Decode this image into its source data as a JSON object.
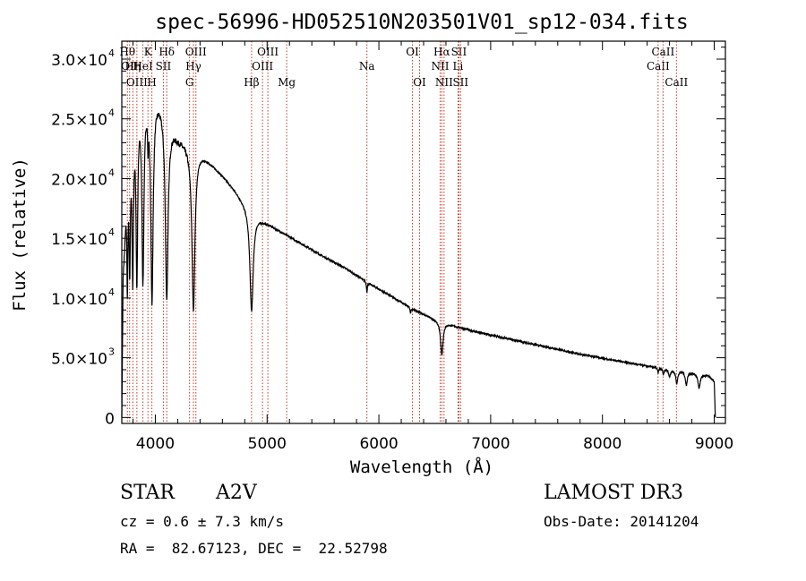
{
  "chart_data": {
    "type": "line",
    "title": "spec-56996-HD052510N203501V01_sp12-034.fits",
    "xlabel": "Wavelength (Å)",
    "ylabel": "Flux (relative)",
    "xlim": [
      3700,
      9100
    ],
    "ylim": [
      -500,
      31500
    ],
    "x_ticks": [
      {
        "value": 4000,
        "label": "4000"
      },
      {
        "value": 5000,
        "label": "5000"
      },
      {
        "value": 6000,
        "label": "6000"
      },
      {
        "value": 7000,
        "label": "7000"
      },
      {
        "value": 8000,
        "label": "8000"
      },
      {
        "value": 9000,
        "label": "9000"
      }
    ],
    "y_ticks": [
      {
        "value": 0,
        "label": "0",
        "exp": ""
      },
      {
        "value": 5000,
        "label": "5.0×10",
        "exp": "3"
      },
      {
        "value": 10000,
        "label": "1.0×10",
        "exp": "4"
      },
      {
        "value": 15000,
        "label": "1.5×10",
        "exp": "4"
      },
      {
        "value": 20000,
        "label": "2.0×10",
        "exp": "4"
      },
      {
        "value": 25000,
        "label": "2.5×10",
        "exp": "4"
      },
      {
        "value": 30000,
        "label": "3.0×10",
        "exp": "4"
      }
    ],
    "lines": [
      {
        "wave": 3750,
        "label": "Hθ",
        "row": 1
      },
      {
        "wave": 3770,
        "label": "OII",
        "row": 2
      },
      {
        "wave": 3799,
        "label": "Hη",
        "row": 2
      },
      {
        "wave": 3835,
        "label": "OIII",
        "row": 3
      },
      {
        "wave": 3889,
        "label": "HeI",
        "row": 2
      },
      {
        "wave": 3934,
        "label": "K",
        "row": 1
      },
      {
        "wave": 3969,
        "label": "H",
        "row": 3
      },
      {
        "wave": 4072,
        "label": "SII",
        "row": 2
      },
      {
        "wave": 4102,
        "label": "Hδ",
        "row": 1
      },
      {
        "wave": 4306,
        "label": "G",
        "row": 3
      },
      {
        "wave": 4341,
        "label": "Hγ",
        "row": 2
      },
      {
        "wave": 4363,
        "label": "OIII",
        "row": 1
      },
      {
        "wave": 4861,
        "label": "Hβ",
        "row": 3
      },
      {
        "wave": 4959,
        "label": "OIII",
        "row": 2
      },
      {
        "wave": 5007,
        "label": "OIII",
        "row": 1
      },
      {
        "wave": 5175,
        "label": "Mg",
        "row": 3
      },
      {
        "wave": 5893,
        "label": "Na",
        "row": 2
      },
      {
        "wave": 6300,
        "label": "OI",
        "row": 1
      },
      {
        "wave": 6364,
        "label": "OI",
        "row": 3
      },
      {
        "wave": 6548,
        "label": "NII",
        "row": 2
      },
      {
        "wave": 6563,
        "label": "Hα",
        "row": 1
      },
      {
        "wave": 6583,
        "label": "NII",
        "row": 3
      },
      {
        "wave": 6708,
        "label": "Li",
        "row": 2
      },
      {
        "wave": 6716,
        "label": "SII",
        "row": 1
      },
      {
        "wave": 6731,
        "label": "SII",
        "row": 3
      },
      {
        "wave": 8498,
        "label": "CaII",
        "row": 2
      },
      {
        "wave": 8542,
        "label": "CaII",
        "row": 1
      },
      {
        "wave": 8662,
        "label": "CaII",
        "row": 3
      }
    ],
    "continuum": [
      [
        3700,
        0
      ],
      [
        3712,
        12500
      ],
      [
        3725,
        15000
      ],
      [
        3745,
        21000
      ],
      [
        3770,
        24500
      ],
      [
        3800,
        26000
      ],
      [
        3840,
        27000
      ],
      [
        3880,
        27600
      ],
      [
        3930,
        27800
      ],
      [
        3980,
        27600
      ],
      [
        4020,
        27100
      ],
      [
        4060,
        26500
      ],
      [
        4100,
        25800
      ],
      [
        4150,
        24500
      ],
      [
        4200,
        23600
      ],
      [
        4300,
        22800
      ],
      [
        4400,
        22200
      ],
      [
        4500,
        21300
      ],
      [
        4600,
        20300
      ],
      [
        4700,
        19200
      ],
      [
        4800,
        18000
      ],
      [
        4950,
        16600
      ],
      [
        5100,
        15700
      ],
      [
        5300,
        14600
      ],
      [
        5500,
        13500
      ],
      [
        5700,
        12500
      ],
      [
        5900,
        11300
      ],
      [
        6100,
        10200
      ],
      [
        6300,
        9100
      ],
      [
        6500,
        8200
      ],
      [
        6700,
        7600
      ],
      [
        6900,
        7100
      ],
      [
        7200,
        6500
      ],
      [
        7500,
        5900
      ],
      [
        7800,
        5300
      ],
      [
        8100,
        4800
      ],
      [
        8400,
        4300
      ],
      [
        8700,
        3900
      ],
      [
        8950,
        3500
      ],
      [
        9000,
        3000
      ],
      [
        9010,
        0
      ]
    ],
    "absorption": [
      {
        "center": 3750,
        "depth": 10000,
        "width": 6
      },
      {
        "center": 3771,
        "depth": 11000,
        "width": 7
      },
      {
        "center": 3798,
        "depth": 13000,
        "width": 8
      },
      {
        "center": 3835,
        "depth": 14500,
        "width": 9
      },
      {
        "center": 3889,
        "depth": 15500,
        "width": 11
      },
      {
        "center": 3934,
        "depth": 3000,
        "width": 4
      },
      {
        "center": 3970,
        "depth": 17500,
        "width": 13
      },
      {
        "center": 4102,
        "depth": 15500,
        "width": 15
      },
      {
        "center": 4341,
        "depth": 13500,
        "width": 16
      },
      {
        "center": 4861,
        "depth": 8500,
        "width": 18
      },
      {
        "center": 5893,
        "depth": 800,
        "width": 5
      },
      {
        "center": 6283,
        "depth": 500,
        "width": 4
      },
      {
        "center": 6563,
        "depth": 2800,
        "width": 13
      },
      {
        "center": 8498,
        "depth": 400,
        "width": 6
      },
      {
        "center": 8545,
        "depth": 500,
        "width": 7
      },
      {
        "center": 8600,
        "depth": 600,
        "width": 9
      },
      {
        "center": 8665,
        "depth": 1100,
        "width": 10
      },
      {
        "center": 8750,
        "depth": 1100,
        "width": 10
      },
      {
        "center": 8865,
        "depth": 1200,
        "width": 11
      }
    ]
  },
  "info": {
    "object_type": "STAR",
    "subclass": "A2V",
    "survey": "LAMOST DR3",
    "cz": "cz = 0.6 ± 7.3 km/s",
    "obs_date": "Obs-Date: 20141204",
    "coords": "RA =  82.67123, DEC =  22.52798"
  },
  "colors": {
    "spectrum": "#000000",
    "line_marker": "#c0392b",
    "axis": "#000000"
  }
}
